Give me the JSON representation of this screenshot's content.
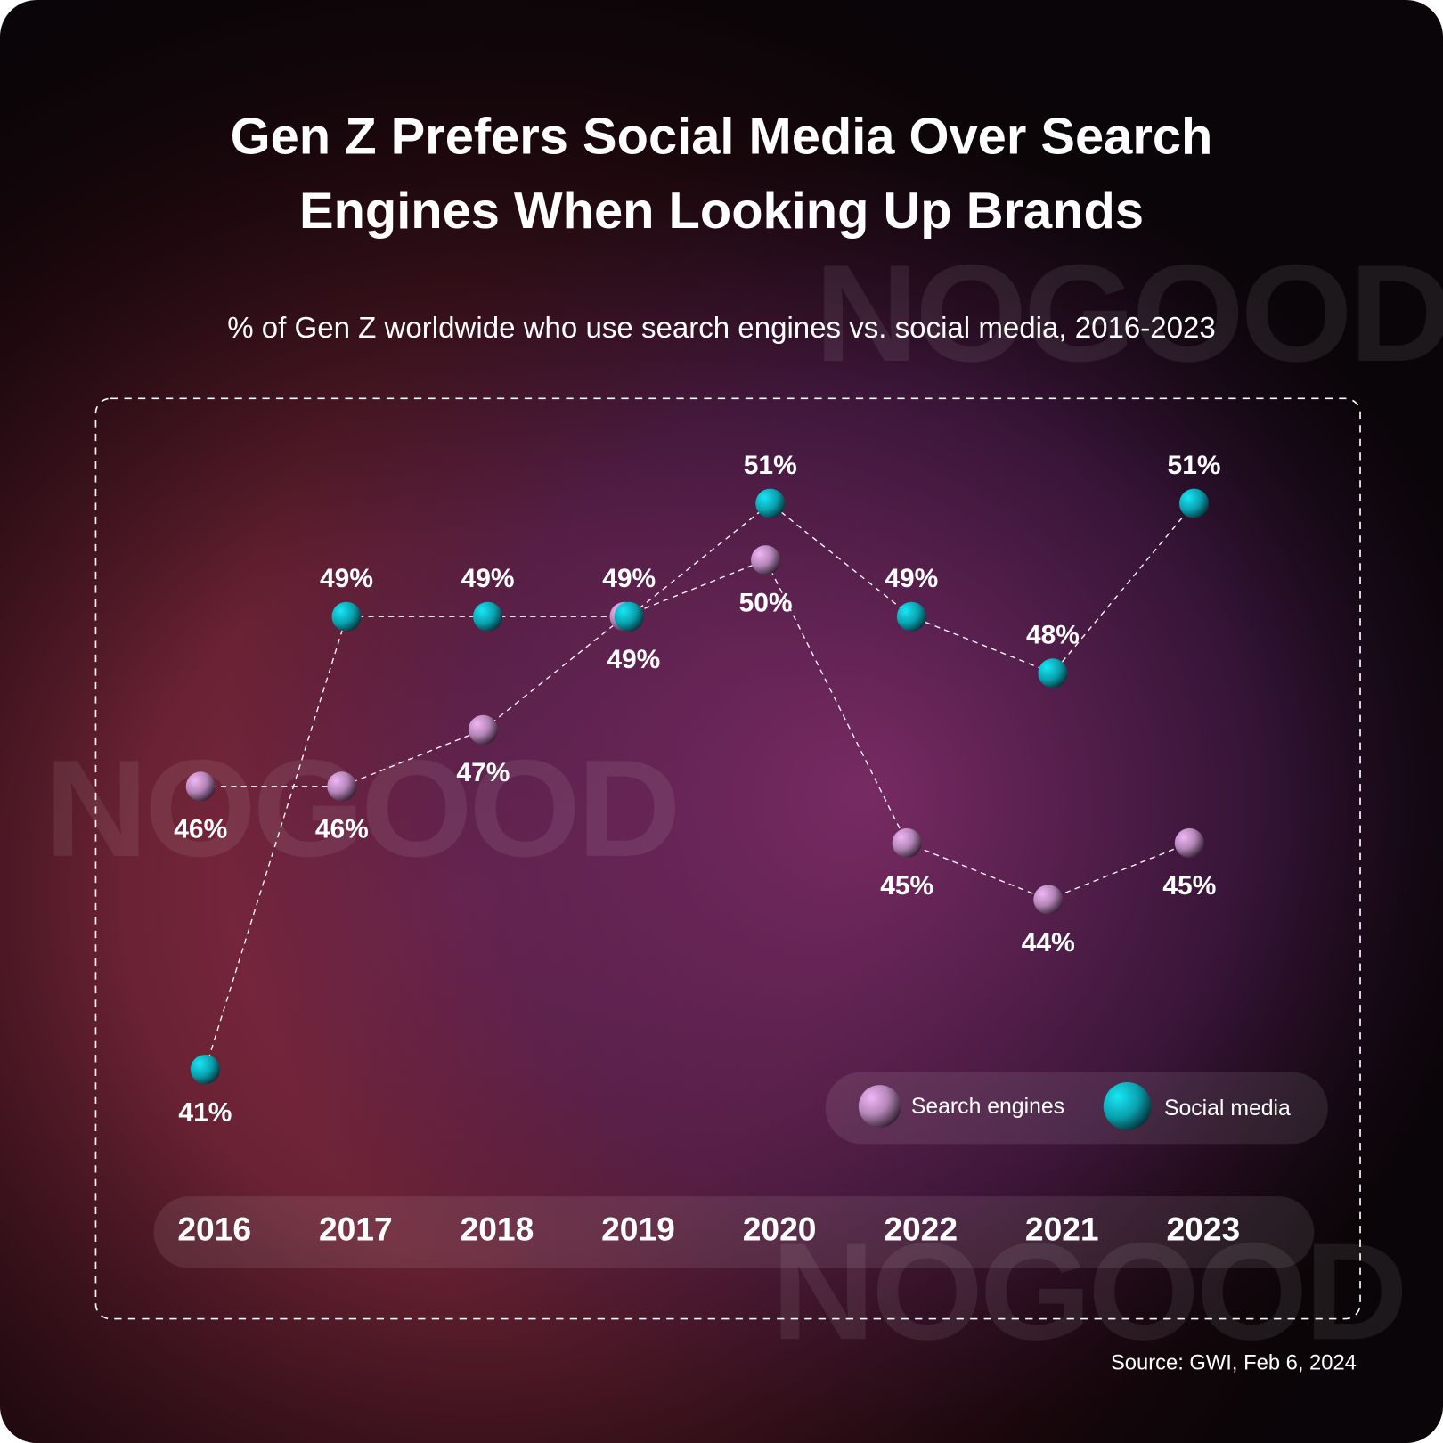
{
  "watermark": "NOGOOD",
  "colors": {
    "search": "#d9a2e6",
    "social": "#1ec9dc",
    "background": "#0a0508"
  },
  "chart_data": {
    "type": "line",
    "title": "Gen Z Prefers Social Media Over Search Engines When Looking Up Brands",
    "title_lines": [
      "Gen Z Prefers Social Media Over Search",
      "Engines When Looking Up Brands"
    ],
    "subtitle": "% of Gen Z worldwide who use search engines vs. social media, 2016-2023",
    "categories": [
      "2016",
      "2017",
      "2018",
      "2019",
      "2020",
      "2022",
      "2021",
      "2023"
    ],
    "unit": "%",
    "series": [
      {
        "name": "Search engines",
        "values": [
          46,
          46,
          47,
          49,
          50,
          45,
          44,
          45
        ],
        "labels": [
          "46%",
          "46%",
          "47%",
          "49%",
          "50%",
          "45%",
          "44%",
          "45%"
        ]
      },
      {
        "name": "Social media",
        "values": [
          41,
          49,
          49,
          49,
          51,
          49,
          48,
          51
        ],
        "labels": [
          "41%",
          "49%",
          "49%",
          "49%",
          "51%",
          "49%",
          "48%",
          "51%"
        ]
      }
    ],
    "legend_position": "bottom-right",
    "grid": false,
    "source": "Source: GWI, Feb 6, 2024"
  }
}
